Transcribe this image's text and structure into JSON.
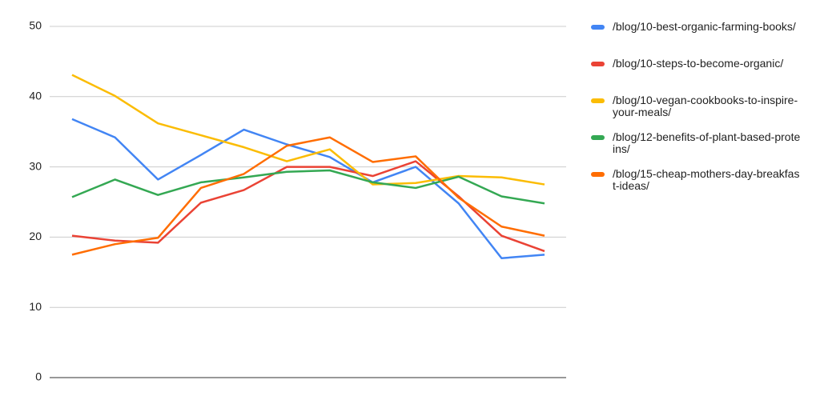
{
  "chart_data": {
    "type": "line",
    "ylim": [
      0,
      50
    ],
    "yticks": [
      0,
      10,
      20,
      30,
      40,
      50
    ],
    "grid": true,
    "legend": "right",
    "series": [
      {
        "name": "/blog/10-best-organic-farming-books/",
        "color": "#4285f4",
        "values": [
          36.8,
          34.2,
          28.2,
          31.7,
          35.3,
          33.2,
          31.4,
          27.8,
          30.0,
          24.8,
          17.0,
          17.5
        ]
      },
      {
        "name": "/blog/10-steps-to-become-organic/",
        "color": "#ea4335",
        "values": [
          20.2,
          19.5,
          19.2,
          24.9,
          26.7,
          30.0,
          30.0,
          28.7,
          30.8,
          25.8,
          20.2,
          18.0
        ]
      },
      {
        "name": "/blog/10-vegan-cookbooks-to-inspire-your-meals/",
        "color": "#fbbc04",
        "values": [
          43.1,
          40.1,
          36.2,
          34.5,
          32.8,
          30.8,
          32.5,
          27.5,
          27.7,
          28.7,
          28.5,
          27.5
        ]
      },
      {
        "name": "/blog/12-benefits-of-plant-based-proteins/",
        "color": "#34a853",
        "values": [
          25.7,
          28.2,
          26.0,
          27.8,
          28.5,
          29.3,
          29.5,
          27.8,
          27.0,
          28.6,
          25.8,
          24.8
        ]
      },
      {
        "name": "/blog/15-cheap-mothers-day-breakfast-ideas/",
        "color": "#ff6d01",
        "values": [
          17.5,
          19.0,
          19.9,
          27.0,
          29.0,
          33.0,
          34.2,
          30.7,
          31.5,
          25.6,
          21.5,
          20.2
        ]
      }
    ]
  }
}
